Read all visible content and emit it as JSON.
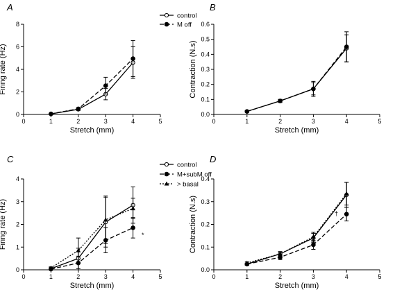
{
  "chart_data": [
    {
      "panel": "A",
      "type": "line",
      "xlabel": "Stretch (mm)",
      "ylabel": "Firing rate (Hz)",
      "xlim": [
        0,
        5
      ],
      "ylim": [
        0,
        8
      ],
      "xticks": [
        0,
        1,
        2,
        3,
        4,
        5
      ],
      "yticks": [
        0,
        2,
        4,
        6,
        8
      ],
      "legend_position": "top-right",
      "series": [
        {
          "name": "control",
          "marker": "open-circle",
          "line": "solid",
          "x": [
            1,
            2,
            3,
            4
          ],
          "y": [
            0.05,
            0.45,
            1.8,
            4.6
          ],
          "err": [
            0.05,
            0.1,
            0.5,
            1.4
          ]
        },
        {
          "name": "M off",
          "marker": "filled-circle",
          "line": "dashed",
          "x": [
            1,
            2,
            3,
            4
          ],
          "y": [
            0.05,
            0.5,
            2.55,
            4.95
          ],
          "err": [
            0.05,
            0.1,
            0.75,
            1.6
          ]
        }
      ]
    },
    {
      "panel": "B",
      "type": "line",
      "xlabel": "Stretch (mm)",
      "ylabel": "Contraction (N.s)",
      "xlim": [
        0,
        5
      ],
      "ylim": [
        0,
        0.6
      ],
      "xticks": [
        0,
        1,
        2,
        3,
        4,
        5
      ],
      "yticks": [
        0.0,
        0.1,
        0.2,
        0.3,
        0.4,
        0.5,
        0.6
      ],
      "series": [
        {
          "name": "control",
          "marker": "open-circle",
          "line": "solid",
          "x": [
            1,
            2,
            3,
            4
          ],
          "y": [
            0.02,
            0.09,
            0.17,
            0.44
          ],
          "err": [
            0.005,
            0.01,
            0.04,
            0.09
          ]
        },
        {
          "name": "M off",
          "marker": "filled-circle",
          "line": "dashed",
          "x": [
            1,
            2,
            3,
            4
          ],
          "y": [
            0.02,
            0.09,
            0.17,
            0.45
          ],
          "err": [
            0.005,
            0.01,
            0.05,
            0.1
          ]
        }
      ]
    },
    {
      "panel": "C",
      "type": "line",
      "xlabel": "Stretch (mm)",
      "ylabel": "Firing rate (Hz)",
      "xlim": [
        0,
        5
      ],
      "ylim": [
        0,
        4
      ],
      "xticks": [
        0,
        1,
        2,
        3,
        4,
        5
      ],
      "yticks": [
        0,
        1,
        2,
        3,
        4
      ],
      "legend_position": "top-right",
      "annotation": "*",
      "series": [
        {
          "name": "control",
          "marker": "open-circle",
          "line": "solid",
          "x": [
            1,
            2,
            3,
            4
          ],
          "y": [
            0.05,
            0.5,
            2.1,
            2.85
          ],
          "err": [
            0.05,
            0.45,
            1.1,
            0.8
          ]
        },
        {
          "name": "M+subM off",
          "marker": "filled-circle",
          "line": "dashed",
          "x": [
            1,
            2,
            3,
            4
          ],
          "y": [
            0.03,
            0.3,
            1.3,
            1.85
          ],
          "err": [
            0.03,
            0.3,
            0.55,
            0.45
          ]
        },
        {
          "name": "> basal",
          "marker": "filled-triangle",
          "line": "dotted",
          "x": [
            1,
            2,
            3,
            4
          ],
          "y": [
            0.08,
            0.85,
            2.2,
            2.7
          ],
          "err": [
            0.05,
            0.55,
            1.05,
            0.45
          ]
        }
      ]
    },
    {
      "panel": "D",
      "type": "line",
      "xlabel": "Stretch (mm)",
      "ylabel": "Contraction (N.s)",
      "xlim": [
        0,
        5
      ],
      "ylim": [
        0,
        0.4
      ],
      "xticks": [
        0,
        1,
        2,
        3,
        4,
        5
      ],
      "yticks": [
        0.0,
        0.1,
        0.2,
        0.3,
        0.4
      ],
      "annotation": "†",
      "series": [
        {
          "name": "control",
          "marker": "open-circle",
          "line": "solid",
          "x": [
            1,
            2,
            3,
            4
          ],
          "y": [
            0.025,
            0.07,
            0.14,
            0.33
          ],
          "err": [
            0.005,
            0.01,
            0.02,
            0.055
          ]
        },
        {
          "name": "M+subM off",
          "marker": "filled-circle",
          "line": "dashed",
          "x": [
            1,
            2,
            3,
            4
          ],
          "y": [
            0.025,
            0.055,
            0.11,
            0.245
          ],
          "err": [
            0.005,
            0.01,
            0.02,
            0.03
          ]
        },
        {
          "name": "> basal",
          "marker": "filled-triangle",
          "line": "dotted",
          "x": [
            1,
            2,
            3,
            4
          ],
          "y": [
            0.03,
            0.07,
            0.145,
            0.335
          ],
          "err": [
            0.005,
            0.01,
            0.02,
            0.05
          ]
        }
      ]
    }
  ]
}
